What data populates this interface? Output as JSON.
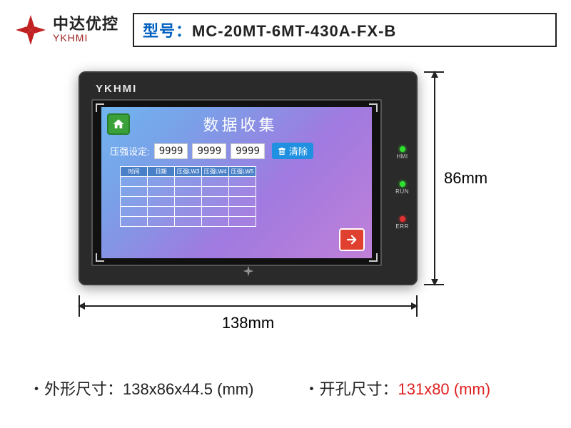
{
  "brand": {
    "cn": "中达优控",
    "en": "YKHMI",
    "logo_color": "#c02020"
  },
  "model": {
    "prefix": "型号：",
    "value": "MC-20MT-6MT-430A-FX-B"
  },
  "device": {
    "brand_label": "YKHMI",
    "leds": [
      {
        "label": "HMI",
        "color": "green"
      },
      {
        "label": "RUN",
        "color": "green"
      },
      {
        "label": "ERR",
        "color": "red"
      }
    ]
  },
  "screen": {
    "title": "数据收集",
    "row_label": "压强设定:",
    "values": [
      "9999",
      "9999",
      "9999"
    ],
    "clear_label": "清除",
    "table_headers": [
      "时间",
      "日期",
      "压强LW3",
      "压强LW4",
      "压强LW5"
    ],
    "table_rows": 5,
    "gradient": [
      "#6fb5f0",
      "#7aa0e8",
      "#a07ae0",
      "#c080d8"
    ]
  },
  "dimensions": {
    "width_label": "138mm",
    "height_label": "86mm"
  },
  "footer": {
    "outline_label": "外形尺寸：",
    "outline_value": "138x86x44.5 (mm)",
    "cutout_label": "开孔尺寸：",
    "cutout_value": "131x80 (mm)"
  },
  "colors": {
    "device_body": "#2a2a2a",
    "accent_blue": "#0060c0",
    "accent_red": "#e02020"
  }
}
